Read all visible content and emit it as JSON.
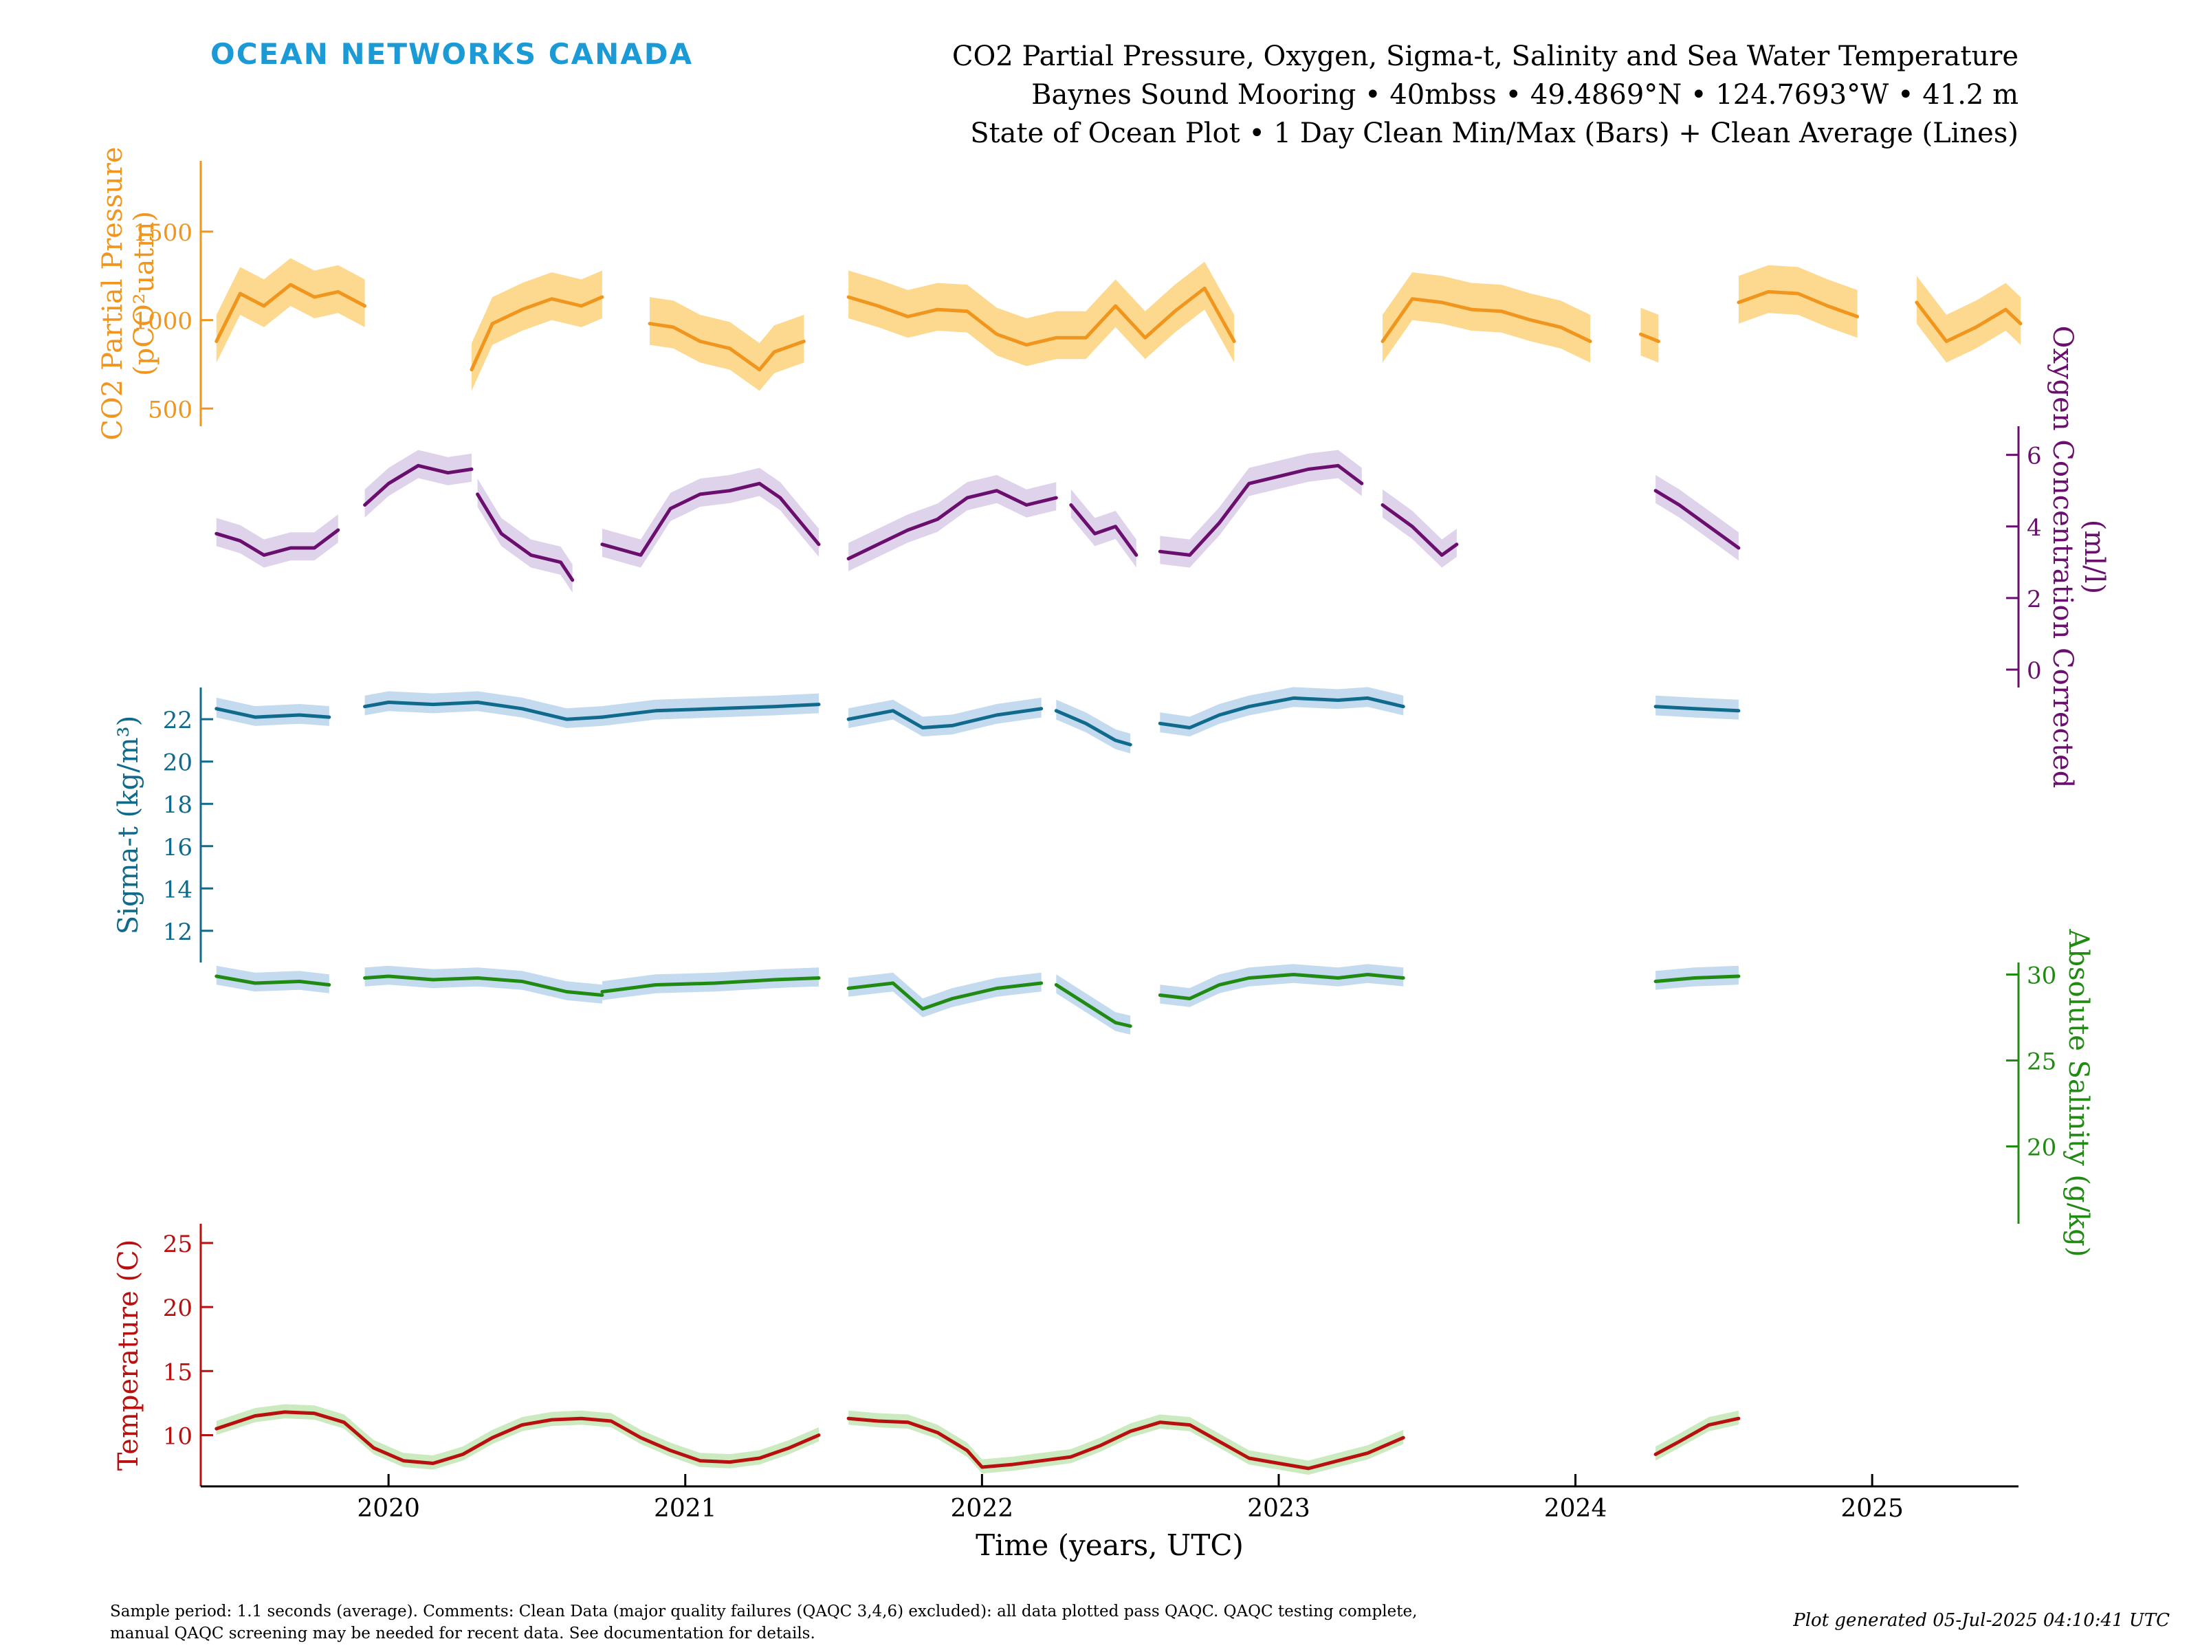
{
  "header": {
    "brand": "OCEAN NETWORKS CANADA",
    "title_line1": "CO2 Partial Pressure, Oxygen, Sigma-t, Salinity and Sea Water Temperature",
    "title_line2": "Baynes Sound Mooring • 40mbss • 49.4869°N • 124.7693°W • 41.2 m",
    "title_line3": "State of Ocean Plot • 1 Day Clean Min/Max (Bars) + Clean Average (Lines)"
  },
  "footer": {
    "note_line1": "Sample period: 1.1 seconds (average). Comments: Clean Data (major quality failures (QAQC 3,4,6) excluded): all data plotted pass QAQC. QAQC testing complete,",
    "note_line2": "manual QAQC screening may be needed for recent data. See documentation for details.",
    "generated": "Plot generated 05-Jul-2025 04:10:41 UTC"
  },
  "colors": {
    "co2": "#f0961e",
    "co2_band": "#fcd27a",
    "oxygen": "#6a0f6e",
    "oxygen_band": "#d9cbe9",
    "sigma": "#0f6a8c",
    "sigma_band": "#b9d3ec",
    "salinity": "#208a12",
    "salinity_band": "#b9d3ec",
    "temperature": "#b80f0f",
    "temperature_band": "#c3e6b4"
  },
  "chart_data": {
    "type": "line",
    "x_axis": {
      "label": "Time (years, UTC)",
      "ticks": [
        "2020",
        "2021",
        "2022",
        "2023",
        "2024",
        "2025"
      ],
      "range": [
        "2019-05-15",
        "2025-06-30"
      ]
    },
    "panels": [
      {
        "key": "co2",
        "axis_side": "left",
        "label_line1": "CO2 Partial Pressure",
        "label_line2": "(pCO²uatm)",
        "ticks": [
          500,
          1000,
          1500
        ],
        "ylim": [
          400,
          1900
        ],
        "series": [
          {
            "x": [
              2019.42,
              2019.5,
              2019.58,
              2019.67,
              2019.75,
              2019.83,
              2019.92
            ],
            "y": [
              880,
              1150,
              1080,
              1200,
              1130,
              1160,
              1080
            ]
          },
          {
            "x": [
              2020.28,
              2020.35,
              2020.45,
              2020.55,
              2020.65,
              2020.72
            ],
            "y": [
              720,
              980,
              1060,
              1120,
              1080,
              1130
            ]
          },
          {
            "x": [
              2020.88,
              2020.96,
              2021.05,
              2021.15,
              2021.25,
              2021.3,
              2021.4
            ],
            "y": [
              980,
              960,
              880,
              840,
              720,
              820,
              880
            ]
          },
          {
            "x": [
              2021.55,
              2021.65,
              2021.75,
              2021.85,
              2021.95,
              2022.05,
              2022.15,
              2022.25,
              2022.35,
              2022.45,
              2022.55,
              2022.65,
              2022.75,
              2022.85
            ],
            "y": [
              1130,
              1080,
              1020,
              1060,
              1050,
              920,
              860,
              900,
              900,
              1080,
              900,
              1050,
              1180,
              880
            ]
          },
          {
            "x": [
              2023.35,
              2023.45,
              2023.55,
              2023.65,
              2023.75,
              2023.85,
              2023.95,
              2024.05
            ],
            "y": [
              880,
              1120,
              1100,
              1060,
              1050,
              1000,
              960,
              880
            ]
          },
          {
            "x": [
              2024.22,
              2024.25,
              2024.28
            ],
            "y": [
              920,
              900,
              880
            ]
          },
          {
            "x": [
              2024.55,
              2024.65,
              2024.75,
              2024.85,
              2024.95
            ],
            "y": [
              1100,
              1160,
              1150,
              1080,
              1020
            ]
          },
          {
            "x": [
              2025.15,
              2025.25,
              2025.35,
              2025.45,
              2025.5
            ],
            "y": [
              1100,
              880,
              960,
              1060,
              980
            ]
          }
        ]
      },
      {
        "key": "oxygen",
        "axis_side": "right",
        "label_line1": "Oxygen Concentration Corrected",
        "label_line2": "(ml/l)",
        "ticks": [
          0,
          2,
          4,
          6
        ],
        "ylim": [
          -0.5,
          6.8
        ],
        "series": [
          {
            "x": [
              2019.42,
              2019.5,
              2019.58,
              2019.67,
              2019.75,
              2019.83
            ],
            "y": [
              3.8,
              3.6,
              3.2,
              3.4,
              3.4,
              3.9
            ]
          },
          {
            "x": [
              2019.92,
              2020.0,
              2020.1,
              2020.2,
              2020.28
            ],
            "y": [
              4.6,
              5.2,
              5.7,
              5.5,
              5.6
            ]
          },
          {
            "x": [
              2020.3,
              2020.38,
              2020.48,
              2020.58,
              2020.62
            ],
            "y": [
              4.9,
              3.8,
              3.2,
              3.0,
              2.5
            ]
          },
          {
            "x": [
              2020.72,
              2020.85,
              2020.95,
              2021.05,
              2021.15,
              2021.25,
              2021.32,
              2021.45
            ],
            "y": [
              3.5,
              3.2,
              4.5,
              4.9,
              5.0,
              5.2,
              4.8,
              3.5
            ]
          },
          {
            "x": [
              2021.55,
              2021.65,
              2021.75,
              2021.85,
              2021.95,
              2022.05,
              2022.15,
              2022.25
            ],
            "y": [
              3.1,
              3.5,
              3.9,
              4.2,
              4.8,
              5.0,
              4.6,
              4.8
            ]
          },
          {
            "x": [
              2022.3,
              2022.38,
              2022.45,
              2022.52
            ],
            "y": [
              4.6,
              3.8,
              4.0,
              3.2
            ]
          },
          {
            "x": [
              2022.6,
              2022.7,
              2022.8,
              2022.9,
              2023.0,
              2023.1,
              2023.2,
              2023.28
            ],
            "y": [
              3.3,
              3.2,
              4.1,
              5.2,
              5.4,
              5.6,
              5.7,
              5.2
            ]
          },
          {
            "x": [
              2023.35,
              2023.45,
              2023.55,
              2023.6
            ],
            "y": [
              4.6,
              4.0,
              3.2,
              3.5
            ]
          },
          {
            "x": [
              2024.27,
              2024.35,
              2024.45,
              2024.55
            ],
            "y": [
              5.0,
              4.6,
              4.0,
              3.4
            ]
          }
        ]
      },
      {
        "key": "sigma",
        "axis_side": "left",
        "label_line1": "Sigma-t (kg/m³)",
        "label_line2": "",
        "ticks": [
          12,
          14,
          16,
          18,
          20,
          22
        ],
        "ylim": [
          10.5,
          23.5
        ],
        "series": [
          {
            "x": [
              2019.42,
              2019.55,
              2019.7,
              2019.8
            ],
            "y": [
              22.5,
              22.1,
              22.2,
              22.1
            ]
          },
          {
            "x": [
              2019.92,
              2020.0,
              2020.15,
              2020.3,
              2020.45,
              2020.6,
              2020.72
            ],
            "y": [
              22.6,
              22.8,
              22.7,
              22.8,
              22.5,
              22.0,
              22.1
            ]
          },
          {
            "x": [
              2020.72,
              2020.9,
              2021.1,
              2021.3,
              2021.45
            ],
            "y": [
              22.1,
              22.4,
              22.5,
              22.6,
              22.7
            ]
          },
          {
            "x": [
              2021.55,
              2021.7,
              2021.8,
              2021.9,
              2022.05,
              2022.2
            ],
            "y": [
              22.0,
              22.4,
              21.6,
              21.7,
              22.2,
              22.5
            ]
          },
          {
            "x": [
              2022.25,
              2022.35,
              2022.45,
              2022.5
            ],
            "y": [
              22.4,
              21.8,
              21.0,
              20.8
            ]
          },
          {
            "x": [
              2022.6,
              2022.7,
              2022.8,
              2022.9,
              2023.05,
              2023.2,
              2023.3,
              2023.42
            ],
            "y": [
              21.8,
              21.6,
              22.2,
              22.6,
              23.0,
              22.9,
              23.0,
              22.6
            ]
          },
          {
            "x": [
              2024.27,
              2024.4,
              2024.55
            ],
            "y": [
              22.6,
              22.5,
              22.4
            ]
          }
        ]
      },
      {
        "key": "salinity",
        "axis_side": "right",
        "label_line1": "Absolute Salinity (g/kg)",
        "label_line2": "",
        "ticks": [
          20,
          25,
          30
        ],
        "ylim": [
          15.5,
          30.7
        ],
        "series": [
          {
            "x": [
              2019.42,
              2019.55,
              2019.7,
              2019.8
            ],
            "y": [
              29.9,
              29.5,
              29.6,
              29.4
            ]
          },
          {
            "x": [
              2019.92,
              2020.0,
              2020.15,
              2020.3,
              2020.45,
              2020.6,
              2020.72
            ],
            "y": [
              29.8,
              29.9,
              29.7,
              29.8,
              29.6,
              29.0,
              28.8
            ]
          },
          {
            "x": [
              2020.72,
              2020.9,
              2021.1,
              2021.3,
              2021.45
            ],
            "y": [
              29.0,
              29.4,
              29.5,
              29.7,
              29.8
            ]
          },
          {
            "x": [
              2021.55,
              2021.7,
              2021.8,
              2021.9,
              2022.05,
              2022.2
            ],
            "y": [
              29.2,
              29.5,
              28.0,
              28.6,
              29.2,
              29.5
            ]
          },
          {
            "x": [
              2022.25,
              2022.35,
              2022.45,
              2022.5
            ],
            "y": [
              29.4,
              28.3,
              27.2,
              27.0
            ]
          },
          {
            "x": [
              2022.6,
              2022.7,
              2022.8,
              2022.9,
              2023.05,
              2023.2,
              2023.3,
              2023.42
            ],
            "y": [
              28.8,
              28.6,
              29.4,
              29.8,
              30.0,
              29.8,
              30.0,
              29.8
            ]
          },
          {
            "x": [
              2024.27,
              2024.4,
              2024.55
            ],
            "y": [
              29.6,
              29.8,
              29.9
            ]
          }
        ]
      },
      {
        "key": "temperature",
        "axis_side": "left",
        "label_line1": "Temperature (C)",
        "label_line2": "",
        "ticks": [
          10,
          15,
          20,
          25
        ],
        "ylim": [
          6,
          26.5
        ],
        "series": [
          {
            "x": [
              2019.42,
              2019.55,
              2019.65,
              2019.75,
              2019.85,
              2019.95,
              2020.05,
              2020.15,
              2020.25,
              2020.35,
              2020.45,
              2020.55,
              2020.65,
              2020.75,
              2020.85,
              2020.95,
              2021.05,
              2021.15,
              2021.25,
              2021.35,
              2021.45
            ],
            "y": [
              10.5,
              11.5,
              11.8,
              11.7,
              11.0,
              9.0,
              8.0,
              7.8,
              8.5,
              9.8,
              10.8,
              11.2,
              11.3,
              11.1,
              9.8,
              8.8,
              8.0,
              7.9,
              8.2,
              9.0,
              10.0
            ]
          },
          {
            "x": [
              2021.55,
              2021.65,
              2021.75,
              2021.85,
              2021.95,
              2022.0,
              2022.1,
              2022.2,
              2022.3,
              2022.4,
              2022.5,
              2022.6,
              2022.7,
              2022.8,
              2022.9,
              2023.0,
              2023.1,
              2023.2,
              2023.3,
              2023.42
            ],
            "y": [
              11.3,
              11.1,
              11.0,
              10.2,
              8.8,
              7.5,
              7.7,
              8.0,
              8.3,
              9.2,
              10.3,
              11.0,
              10.8,
              9.5,
              8.2,
              7.8,
              7.4,
              8.0,
              8.6,
              9.8
            ]
          },
          {
            "x": [
              2024.27,
              2024.35,
              2024.45,
              2024.55
            ],
            "y": [
              8.5,
              9.5,
              10.8,
              11.3
            ]
          }
        ]
      }
    ]
  }
}
